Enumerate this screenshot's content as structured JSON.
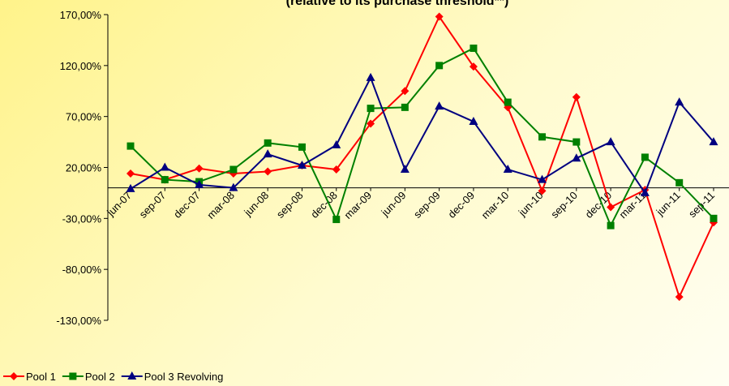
{
  "chart_data": {
    "type": "line",
    "title": "(relative to its purchase threshold**)",
    "categories": [
      "jun-07",
      "sep-07",
      "dec-07",
      "mar-08",
      "jun-08",
      "sep-08",
      "dec-08",
      "mar-09",
      "jun-09",
      "sep-09",
      "dec-09",
      "mar-10",
      "jun-10",
      "sep-10",
      "dec-10",
      "mar-11",
      "jun-11",
      "sep-11"
    ],
    "series": [
      {
        "name": "Pool 1",
        "color": "#ff0000",
        "marker": "diamond",
        "values": [
          14,
          8,
          19,
          14,
          16,
          22,
          18,
          63,
          95,
          168,
          119,
          79,
          -3,
          89,
          -19,
          -2,
          -107,
          -34
        ]
      },
      {
        "name": "Pool 2",
        "color": "#008000",
        "marker": "square",
        "values": [
          41,
          8,
          6,
          18,
          44,
          40,
          -31,
          78,
          79,
          120,
          137,
          84,
          50,
          45,
          -37,
          30,
          5,
          -30
        ]
      },
      {
        "name": "Pool 3 Revolving",
        "color": "#000080",
        "marker": "triangle",
        "values": [
          -1,
          20,
          3,
          0,
          33,
          22,
          42,
          108,
          18,
          80,
          65,
          18,
          8,
          29,
          45,
          -5,
          84,
          45
        ]
      }
    ],
    "ylim": [
      -130,
      170
    ],
    "yticks": [
      {
        "value": -130,
        "label": "-130,00%"
      },
      {
        "value": -80,
        "label": "-80,00%"
      },
      {
        "value": -30,
        "label": "-30,00%"
      },
      {
        "value": 20,
        "label": "20,00%"
      },
      {
        "value": 70,
        "label": "70,00%"
      },
      {
        "value": 120,
        "label": "120,00%"
      },
      {
        "value": 170,
        "label": "170,00%"
      }
    ],
    "grid": false,
    "legend": "bottom-left"
  }
}
